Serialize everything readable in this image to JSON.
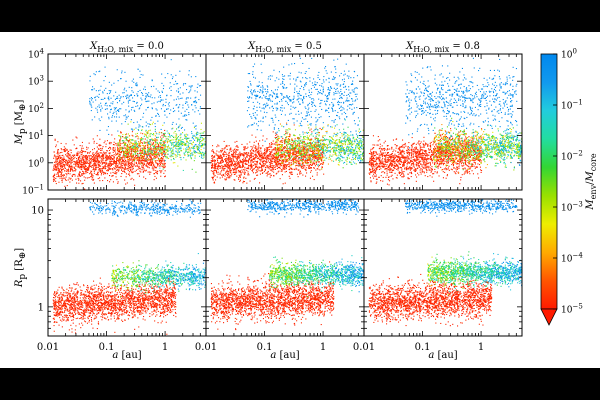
{
  "chart_data": {
    "type": "scatter",
    "description_panels": "2x3 grid of scatter plots sharing x axis (semi-major axis) and a color scale",
    "columns": [
      {
        "title_symbol": "X",
        "title_sub": "H₂O, mix",
        "title_value": " = 0.0",
        "x_envelope_mix": 0.0
      },
      {
        "title_symbol": "X",
        "title_sub": "H₂O, mix",
        "title_value": " = 0.5",
        "x_envelope_mix": 0.5
      },
      {
        "title_symbol": "X",
        "title_sub": "H₂O, mix",
        "title_value": " = 0.8",
        "x_envelope_mix": 0.8
      }
    ],
    "xaxis": {
      "label_sym": "a",
      "label_unit": " [au]",
      "scale": "log",
      "xlim": [
        0.01,
        5
      ],
      "ticks": [
        0.01,
        0.1,
        1
      ],
      "tick_labels": [
        "0.01",
        "0.1",
        "1"
      ]
    },
    "rows": [
      {
        "name": "mass",
        "ylabel_sym": "M",
        "ylabel_sub": "p",
        "ylabel_unit": "[M",
        "ylabel_unit_sub": "⊕",
        "ylabel_close": "]",
        "scale": "log",
        "ylim": [
          0.1,
          10000
        ],
        "ticks": [
          0.1,
          1,
          10,
          100,
          1000,
          10000
        ],
        "tick_labels": [
          {
            "base": "10",
            "exp": "−1"
          },
          {
            "base": "10",
            "exp": "0"
          },
          {
            "base": "10",
            "exp": "1"
          },
          {
            "base": "10",
            "exp": "2"
          },
          {
            "base": "10",
            "exp": "3"
          },
          {
            "base": "10",
            "exp": "4"
          }
        ]
      },
      {
        "name": "radius",
        "ylabel_sym": "R",
        "ylabel_sub": "p",
        "ylabel_unit": "[R",
        "ylabel_unit_sub": "⊕",
        "ylabel_close": "]",
        "scale": "log",
        "ylim": [
          0.5,
          13
        ],
        "ticks": [
          1,
          10
        ],
        "tick_labels": [
          "1",
          "10"
        ]
      }
    ],
    "populations": [
      {
        "name": "rocky cores (mass)",
        "row": 0,
        "a_range": [
          0.012,
          1.0
        ],
        "log_mean": [
          0.1,
          0.15,
          0.2
        ],
        "log_spread": 0.32,
        "color_frac_range": [
          0.0,
          0.05
        ],
        "count": [
          1700,
          1700,
          1700
        ]
      },
      {
        "name": "envelope-bearing (mass)",
        "row": 0,
        "a_range": [
          0.15,
          5.0
        ],
        "log_mean": [
          0.65,
          0.6,
          0.6
        ],
        "log_spread": 0.3,
        "color_frac_range": [
          0.05,
          0.75
        ],
        "count": [
          900,
          1100,
          1300
        ]
      },
      {
        "name": "giants (mass)",
        "row": 0,
        "a_range": [
          0.05,
          4.0
        ],
        "log_mean": [
          2.3,
          2.4,
          2.3
        ],
        "log_spread": 0.55,
        "color_frac_range": [
          0.92,
          1.0
        ],
        "count": [
          450,
          650,
          650
        ]
      },
      {
        "name": "rocky cores (radius)",
        "row": 1,
        "a_range": [
          0.012,
          1.5
        ],
        "log_mean": [
          0.05,
          0.07,
          0.07
        ],
        "log_spread": 0.09,
        "color_frac_range": [
          0.0,
          0.05
        ],
        "count": [
          2000,
          2000,
          2000
        ]
      },
      {
        "name": "envelope-bearing (radius)",
        "row": 1,
        "a_range": [
          0.12,
          5.0
        ],
        "log_mean": [
          0.32,
          0.34,
          0.36
        ],
        "log_spread": 0.06,
        "color_frac_range": [
          0.4,
          0.8
        ],
        "count": [
          900,
          1200,
          1400
        ]
      },
      {
        "name": "giants (radius)",
        "row": 1,
        "a_range": [
          0.05,
          4.0
        ],
        "log_mean": [
          1.02,
          1.05,
          1.05
        ],
        "log_spread": 0.035,
        "color_frac_range": [
          0.92,
          1.0
        ],
        "count": [
          380,
          550,
          550
        ]
      }
    ],
    "colorbar": {
      "label_num_sym": "M",
      "label_num_sub": "env",
      "label_sep": "/",
      "label_den_sym": "M",
      "label_den_sub": "core",
      "scale": "log",
      "range": [
        1e-05,
        1
      ],
      "tick_labels": [
        {
          "base": "10",
          "exp": "0"
        },
        {
          "base": "10",
          "exp": "−1"
        },
        {
          "base": "10",
          "exp": "−2"
        },
        {
          "base": "10",
          "exp": "−3"
        },
        {
          "base": "10",
          "exp": "−4"
        },
        {
          "base": "10",
          "exp": "−5"
        }
      ],
      "extend": "min",
      "colormap": [
        "#ff1a00",
        "#ff5500",
        "#ffaa00",
        "#eeee00",
        "#99e000",
        "#33d633",
        "#22dda0",
        "#22ccdd",
        "#1199ee",
        "#0088ee"
      ]
    }
  }
}
